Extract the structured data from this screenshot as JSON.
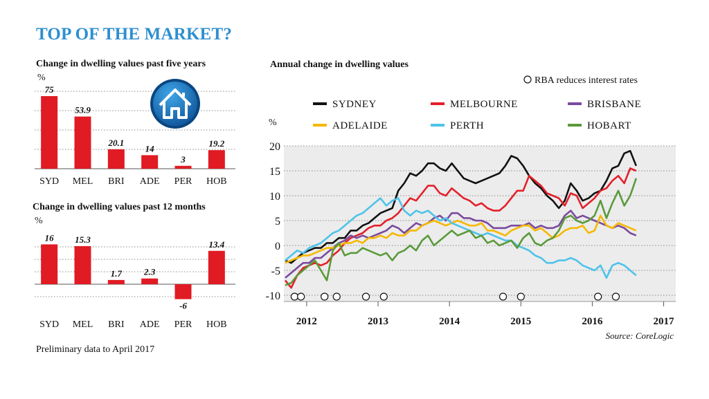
{
  "title": "TOP OF THE MARKET?",
  "footnote": "Preliminary data to April 2017",
  "house_icon": "house-icon",
  "colors": {
    "title": "#2e8fd0",
    "bar": "#e01b23",
    "sydney": "#111111",
    "melbourne": "#e3202a",
    "brisbane": "#7b4a9e",
    "adelaide": "#f5b800",
    "perth": "#4ec3ea",
    "hobart": "#5a9a3a"
  },
  "chart_data": [
    {
      "type": "bar",
      "title": "Change in dwelling values past five years",
      "ylabel": "%",
      "categories": [
        "SYD",
        "MEL",
        "BRI",
        "ADE",
        "PER",
        "HOB"
      ],
      "values": [
        75,
        53.9,
        20.1,
        14,
        3,
        19.2
      ],
      "value_labels": [
        "75",
        "53.9",
        "20.1",
        "14",
        "3",
        "19.2"
      ],
      "ylim": [
        0,
        80
      ]
    },
    {
      "type": "bar",
      "title": "Change in dwelling values past 12 months",
      "ylabel": "%",
      "categories": [
        "SYD",
        "MEL",
        "BRI",
        "ADE",
        "PER",
        "HOB"
      ],
      "values": [
        16,
        15.3,
        1.7,
        2.3,
        -6,
        13.4
      ],
      "value_labels": [
        "16",
        "15.3",
        "1.7",
        "2.3",
        "-6",
        "13.4"
      ],
      "ylim": [
        -8,
        18
      ]
    },
    {
      "type": "line",
      "title": "Annual change in dwelling values",
      "ylabel": "%",
      "x_tick_labels": [
        "2012",
        "2013",
        "2014",
        "2015",
        "2016",
        "2017"
      ],
      "x_ticks": [
        2012.0,
        2013.0,
        2014.0,
        2015.0,
        2016.0,
        2017.0
      ],
      "xlim": [
        2011.7,
        2017.15
      ],
      "y_ticks": [
        20,
        15,
        10,
        5,
        0,
        -5,
        -10
      ],
      "y_tick_labels": [
        "20",
        "15",
        "10",
        "5",
        "0",
        "-5",
        "-10"
      ],
      "ylim": [
        -10,
        20
      ],
      "legend": [
        "SYDNEY",
        "MELBOURNE",
        "BRISBANE",
        "ADELAIDE",
        "PERTH",
        "HOBART"
      ],
      "legend_position": "top",
      "annotation_label": "RBA reduces interest rates",
      "rba_cuts": [
        2011.83,
        2011.92,
        2012.25,
        2012.42,
        2012.83,
        2013.08,
        2014.75,
        2015.0,
        2016.08,
        2016.33
      ],
      "source": "Source: CoreLogic",
      "series_x_start": 2011.7,
      "series_x_step": 0.0833,
      "series": [
        {
          "name": "SYDNEY",
          "color": "#111111",
          "values": [
            -3,
            -3.5,
            -2.5,
            -1.5,
            -1,
            -0.5,
            -0.5,
            0.5,
            0.5,
            1.5,
            1.5,
            3,
            3,
            4,
            4.5,
            5.5,
            6.5,
            7,
            7.5,
            11,
            12.5,
            14.5,
            14,
            15,
            16.5,
            16.5,
            15.5,
            15,
            16.5,
            15,
            13.5,
            13,
            12.5,
            13,
            13.5,
            14,
            14.5,
            16,
            18,
            17.5,
            16,
            14,
            12.5,
            11.5,
            10,
            9,
            7.5,
            9,
            12.5,
            11,
            9,
            9.5,
            10.5,
            11,
            13,
            15.5,
            16,
            18.5,
            19,
            16
          ]
        },
        {
          "name": "MELBOURNE",
          "color": "#e3202a",
          "values": [
            -7,
            -8.5,
            -6,
            -4.5,
            -4,
            -3.5,
            -4,
            -3.5,
            -2,
            -1,
            0.5,
            1.5,
            2,
            2.5,
            3.5,
            4,
            4,
            5,
            5.5,
            6.5,
            8,
            9.5,
            9,
            10.5,
            12,
            12,
            10.5,
            10,
            11.5,
            10.5,
            9.5,
            9,
            8,
            8.5,
            7.5,
            7,
            7,
            8,
            9.5,
            11,
            11,
            14,
            13,
            12,
            10.5,
            10,
            9.5,
            8,
            10.5,
            10,
            7.5,
            8.5,
            9.5,
            11,
            11.5,
            13,
            14,
            12.5,
            15.5,
            15
          ]
        },
        {
          "name": "BRISBANE",
          "color": "#7b4a9e",
          "values": [
            -6.5,
            -5.5,
            -4.5,
            -3.5,
            -3.5,
            -2.5,
            -2.5,
            -1.5,
            -0.5,
            0.5,
            1,
            2,
            1.5,
            2,
            1.5,
            2,
            2.5,
            3,
            4,
            3.5,
            2.5,
            3.5,
            4.5,
            4,
            4.5,
            5.5,
            6,
            5,
            6.5,
            6.5,
            5.5,
            5.5,
            5,
            5,
            4.5,
            3.5,
            3.5,
            3.5,
            4,
            4,
            4,
            4.5,
            3.5,
            4,
            3.5,
            3.5,
            4,
            6,
            7,
            5.5,
            6,
            5.5,
            5,
            4.5,
            4,
            3.5,
            4,
            3.5,
            2.5,
            2
          ]
        },
        {
          "name": "ADELAIDE",
          "color": "#f5b800",
          "values": [
            -3.5,
            -3,
            -2.5,
            -2,
            -2,
            -1.5,
            -1,
            -0.5,
            -0.5,
            0,
            0.5,
            0.5,
            1,
            0.5,
            1.5,
            1.5,
            2,
            1.5,
            2.5,
            2,
            2,
            3,
            3,
            4,
            4.5,
            5,
            4.5,
            4,
            4.5,
            5,
            4.5,
            4,
            4,
            4.5,
            3,
            3,
            2.5,
            2,
            3,
            3.5,
            4,
            4,
            3,
            3.5,
            2.5,
            1.5,
            2,
            3,
            3.5,
            3.5,
            4,
            2.5,
            3,
            6,
            4,
            3.5,
            4.5,
            4,
            3.5,
            3
          ]
        },
        {
          "name": "PERTH",
          "color": "#4ec3ea",
          "values": [
            -3,
            -2,
            -1,
            -1.5,
            -0.5,
            0,
            0.5,
            1.5,
            2.5,
            3,
            4,
            5,
            6,
            6.5,
            7.5,
            8.5,
            9.5,
            8,
            9,
            9.5,
            7,
            6,
            7,
            6.5,
            7,
            6,
            5,
            5.5,
            4.5,
            4,
            3.5,
            3,
            2.5,
            2,
            2.5,
            2,
            1.5,
            1,
            1,
            0,
            -0.5,
            -1,
            -2,
            -2.5,
            -3.5,
            -3.5,
            -3,
            -3,
            -2.5,
            -3,
            -4,
            -4.5,
            -5,
            -4,
            -6.5,
            -4,
            -3.5,
            -4,
            -5,
            -6
          ]
        },
        {
          "name": "HOBART",
          "color": "#5a9a3a",
          "values": [
            -8,
            -7.5,
            -6,
            -5,
            -4,
            -3,
            -5,
            -7,
            -1,
            0.5,
            -2,
            -1.5,
            -1.5,
            -0.5,
            -1,
            -1.5,
            -2,
            -1.5,
            -3,
            -1.5,
            -1,
            0,
            -1,
            1,
            2,
            0,
            1,
            2,
            3,
            2,
            2.5,
            3,
            1.5,
            2,
            0.5,
            1,
            0,
            0.5,
            1,
            -0.5,
            1.5,
            2.5,
            0.5,
            0,
            1,
            1.5,
            3,
            5.5,
            6,
            5,
            4.5,
            5,
            6,
            9,
            5.5,
            8.5,
            11,
            8,
            10,
            13.5
          ]
        }
      ]
    }
  ]
}
